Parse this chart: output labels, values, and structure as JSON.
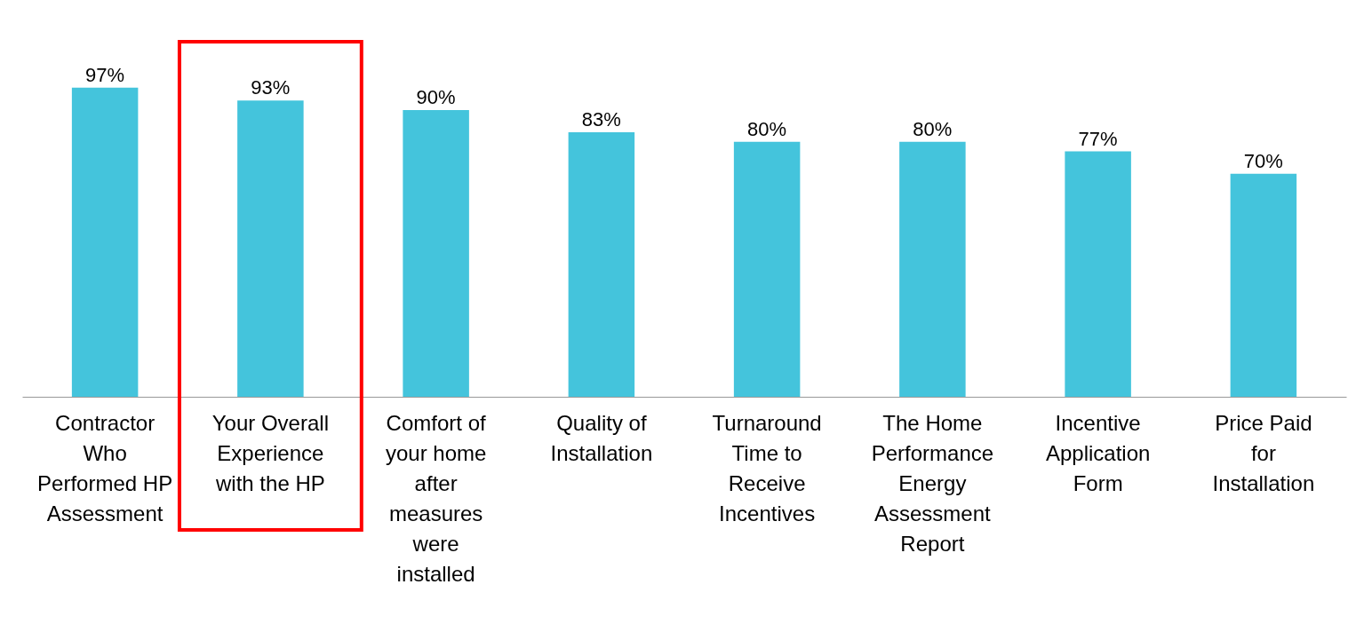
{
  "chart_data": {
    "type": "bar",
    "categories": [
      "Contractor Who Performed HP Assessment",
      "Your Overall Experience with the HP",
      "Comfort of your home after measures were installed",
      "Quality of Installation",
      "Turnaround Time to Receive Incentives",
      "The Home Performance Energy Assessment Report",
      "Incentive Application Form",
      "Price Paid for Installation"
    ],
    "values": [
      97,
      93,
      90,
      83,
      80,
      80,
      77,
      70
    ],
    "value_labels": [
      "97%",
      "93%",
      "90%",
      "83%",
      "80%",
      "80%",
      "77%",
      "70%"
    ],
    "color": "#44c4dc",
    "grid": false
  }
}
